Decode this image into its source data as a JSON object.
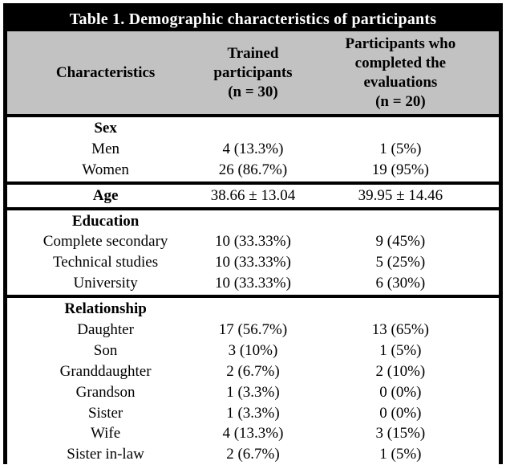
{
  "colors": {
    "title_bg": "#000000",
    "title_fg": "#ffffff",
    "header_bg": "#c2c2c2",
    "border": "#000000"
  },
  "table": {
    "title": "Table 1. Demographic characteristics of participants",
    "columns": [
      "Characteristics",
      "Trained\nparticipants\n(n = 30)",
      "Participants who\ncompleted the\nevaluations\n(n = 20)"
    ],
    "sections": [
      {
        "rows": [
          {
            "label": "Sex",
            "bold": true,
            "col2": "",
            "col3": ""
          },
          {
            "label": "Men",
            "bold": false,
            "col2": "4 (13.3%)",
            "col3": "1 (5%)"
          },
          {
            "label": "Women",
            "bold": false,
            "col2": "26 (86.7%)",
            "col3": "19 (95%)"
          }
        ]
      },
      {
        "rows": [
          {
            "label": "Age",
            "bold": true,
            "col2": "38.66 ± 13.04",
            "col3": "39.95 ± 14.46"
          }
        ]
      },
      {
        "rows": [
          {
            "label": "Education",
            "bold": true,
            "col2": "",
            "col3": ""
          },
          {
            "label": "Complete secondary",
            "bold": false,
            "col2": "10 (33.33%)",
            "col3": "9 (45%)"
          },
          {
            "label": "Technical studies",
            "bold": false,
            "col2": "10 (33.33%)",
            "col3": "5 (25%)"
          },
          {
            "label": "University",
            "bold": false,
            "col2": "10 (33.33%)",
            "col3": "6 (30%)"
          }
        ]
      },
      {
        "rows": [
          {
            "label": "Relationship",
            "bold": true,
            "col2": "",
            "col3": ""
          },
          {
            "label": "Daughter",
            "bold": false,
            "col2": "17 (56.7%)",
            "col3": "13 (65%)"
          },
          {
            "label": "Son",
            "bold": false,
            "col2": "3 (10%)",
            "col3": "1 (5%)"
          },
          {
            "label": "Granddaughter",
            "bold": false,
            "col2": "2 (6.7%)",
            "col3": "2 (10%)"
          },
          {
            "label": "Grandson",
            "bold": false,
            "col2": "1 (3.3%)",
            "col3": "0 (0%)"
          },
          {
            "label": "Sister",
            "bold": false,
            "col2": "1 (3.3%)",
            "col3": "0 (0%)"
          },
          {
            "label": "Wife",
            "bold": false,
            "col2": "4 (13.3%)",
            "col3": "3 (15%)"
          },
          {
            "label": "Sister in-law",
            "bold": false,
            "col2": "2 (6.7%)",
            "col3": "1 (5%)"
          }
        ]
      }
    ]
  }
}
